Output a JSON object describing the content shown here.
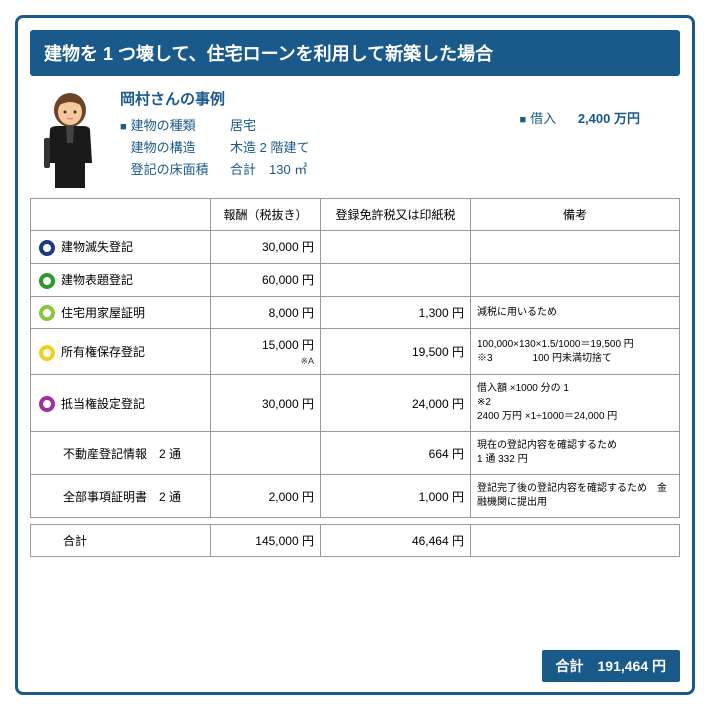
{
  "title": "建物を 1 つ壊して、住宅ローンを利用して新築した場合",
  "case": {
    "name": "岡村さんの事例",
    "rows": [
      {
        "label": "建物の種類",
        "value": "居宅",
        "marked": true
      },
      {
        "label": "建物の構造",
        "value": "木造 2 階建て",
        "marked": false
      },
      {
        "label": "登記の床面積",
        "value": "合計　130 ㎡",
        "marked": false
      }
    ],
    "loan_label": "借入",
    "loan_value": "2,400 万円"
  },
  "headers": [
    "",
    "報酬（税抜き）",
    "登録免許税又は印紙税",
    "備考"
  ],
  "rows": [
    {
      "circle": "c-navy",
      "name": "建物滅失登記",
      "fee": "30,000 円",
      "tax": "",
      "note": ""
    },
    {
      "circle": "c-green",
      "name": "建物表題登記",
      "fee": "60,000 円",
      "tax": "",
      "note": ""
    },
    {
      "circle": "c-lgreen",
      "name": "住宅用家屋証明",
      "fee": "8,000 円",
      "tax": "1,300 円",
      "note": "減税に用いるため"
    },
    {
      "circle": "c-yellow",
      "name": "所有権保存登記",
      "fee": "15,000 円",
      "fee_sub": "※A",
      "tax": "19,500 円",
      "note": "100,000×130×1.5/1000＝19,500 円\n※3　　　　100 円未満切捨て"
    },
    {
      "circle": "c-purple",
      "name": "抵当権設定登記",
      "fee": "30,000 円",
      "tax": "24,000 円",
      "note": "借入額 ×1000 分の 1\n※2\n2400 万円 ×1÷1000＝24,000 円"
    },
    {
      "circle": "",
      "name": "不動産登記情報　2 通",
      "fee": "",
      "tax": "664 円",
      "note": "現在の登記内容を確認するため\n1 通 332 円"
    },
    {
      "circle": "",
      "name": "全部事項証明書　2 通",
      "fee": "2,000 円",
      "tax": "1,000 円",
      "note": "登記完了後の登記内容を確認するため　金融機関に提出用"
    }
  ],
  "subtotal": {
    "label": "合計",
    "fee": "145,000 円",
    "tax": "46,464 円"
  },
  "grand_total": {
    "label": "合計",
    "value": "191,464 円"
  }
}
